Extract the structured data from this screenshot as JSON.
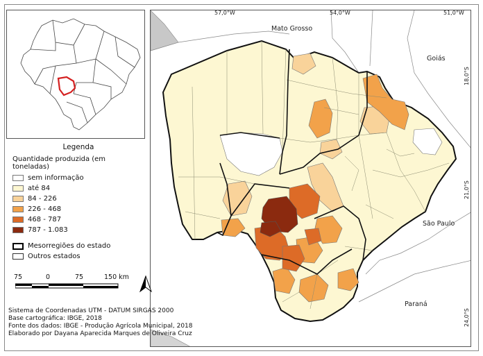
{
  "inset": {
    "icon": "brazil-locator-map"
  },
  "coords": {
    "top": [
      "57,0°W",
      "54,0°W",
      "51,0°W"
    ],
    "right": [
      "18,0°S",
      "21,0°S",
      "24,0°S"
    ]
  },
  "places": {
    "mato_grosso": "Mato Grosso",
    "goias": "Goiás",
    "sao_paulo": "São Paulo",
    "parana": "Paraná"
  },
  "legend": {
    "title": "Legenda",
    "subtitle": "Quantidade produzida (em toneladas)",
    "classes": [
      {
        "label": "sem informação",
        "color": "#ffffff"
      },
      {
        "label": "até 84",
        "color": "#fdf7d2"
      },
      {
        "label": "84 - 226",
        "color": "#f9d39a"
      },
      {
        "label": "226 - 468",
        "color": "#f2a24a"
      },
      {
        "label": "468 - 787",
        "color": "#dd6b27"
      },
      {
        "label": "787 - 1.083",
        "color": "#8b2a0f"
      }
    ],
    "boundaries": [
      {
        "label": "Mesorregiões do estado",
        "style": "thick"
      },
      {
        "label": "Outros estados",
        "style": "thin"
      }
    ]
  },
  "scale": {
    "labels": [
      "75",
      "0",
      "75",
      "150 km"
    ],
    "north_icon": "north-arrow-icon"
  },
  "credits": [
    "Sistema de Coordenadas UTM - DATUM SIRGAS 2000",
    "Base cartográfica: IBGE, 2018",
    "Fonte dos dados: IBGE - Produção Agrícola Municipal, 2018",
    "Elaborado por Dayana Aparecida Marques de Oliveira Cruz"
  ]
}
